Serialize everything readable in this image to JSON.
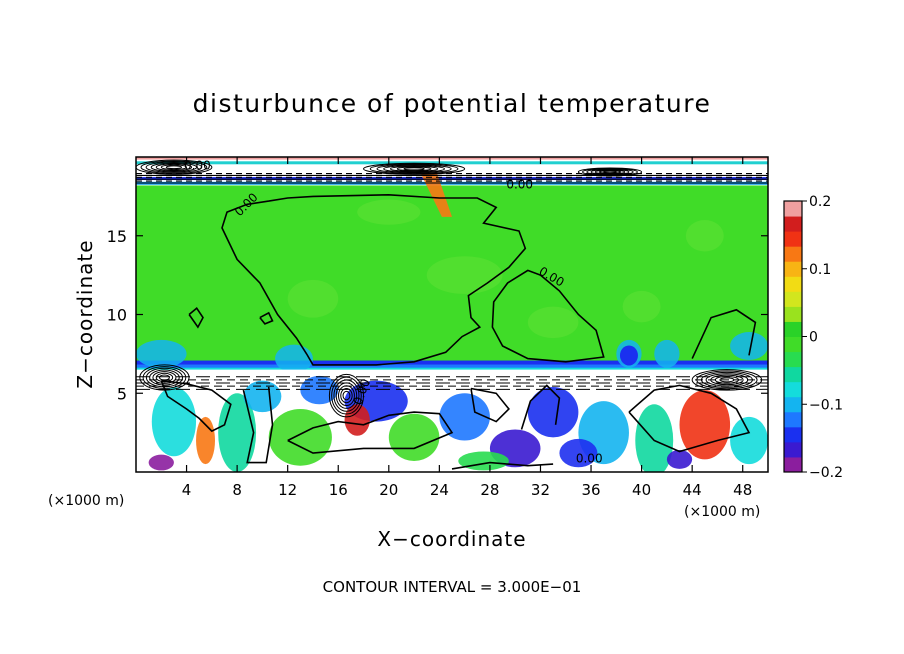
{
  "chart_data": {
    "type": "heatmap",
    "title": "disturbunce of potential temperature",
    "xlabel": "X−coordinate",
    "ylabel": "Z−coordinate",
    "x_unit_left": "(×1000 m)",
    "x_unit_right": "(×1000 m)",
    "footer": "CONTOUR INTERVAL = 3.000E−01",
    "xlim": [
      0,
      50
    ],
    "ylim": [
      0,
      20
    ],
    "x_ticks": [
      4,
      8,
      12,
      16,
      20,
      24,
      28,
      32,
      36,
      40,
      44,
      48
    ],
    "x_tick_labels": [
      "4",
      "8",
      "12",
      "16",
      "20",
      "24",
      "28",
      "32",
      "36",
      "40",
      "44",
      "48"
    ],
    "y_ticks": [
      5,
      10,
      15
    ],
    "y_tick_labels": [
      "5",
      "10",
      "15"
    ],
    "contour_labels": [
      "0.00",
      "0.00",
      "0.00",
      "0.00",
      "0.00",
      "0.00"
    ],
    "colorbar": {
      "min": -0.2,
      "max": 0.2,
      "ticks": [
        0.2,
        0.1,
        0,
        -0.1,
        -0.2
      ],
      "tick_labels": [
        "0.2",
        "0.1",
        "0",
        "−0.1",
        "−0.2"
      ],
      "colors": [
        "#8b1e9e",
        "#3a1ad0",
        "#1a30f0",
        "#1e78ff",
        "#14b4f0",
        "#14dcdc",
        "#10d8a0",
        "#28dc50",
        "#40dc28",
        "#2ad228",
        "#9ae21e",
        "#d2e61e",
        "#f2dc14",
        "#f8b414",
        "#f87814",
        "#f03214",
        "#d21e1e",
        "#f0a0a0"
      ]
    },
    "regions": {
      "upper_layer_value": 0,
      "upper_layer_z": [
        6.5,
        18.2
      ],
      "top_band_z": [
        18.2,
        20
      ],
      "lower_layer_z": [
        0,
        6.5
      ]
    },
    "grid": false,
    "legend": "colorbar right"
  }
}
